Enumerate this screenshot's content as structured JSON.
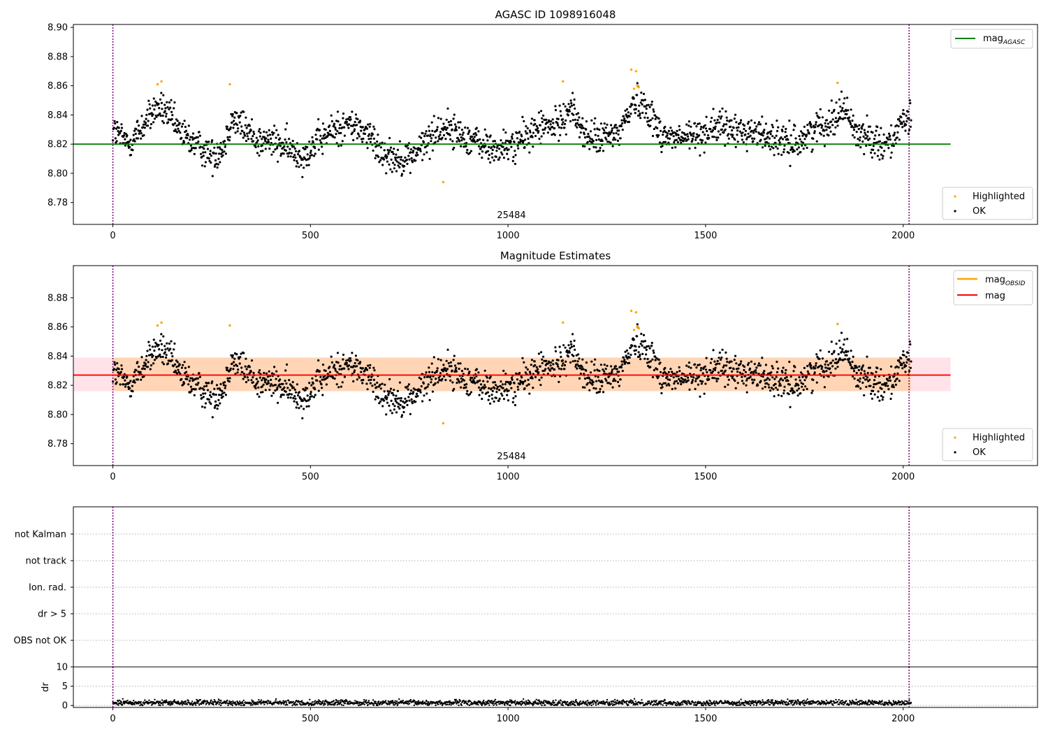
{
  "chart_data": [
    {
      "type": "scatter",
      "title": "AGASC ID 1098916048",
      "xlim": [
        -100,
        2340
      ],
      "ylim": [
        8.765,
        8.902
      ],
      "x_ticks": [
        0,
        500,
        1000,
        1500,
        2000
      ],
      "x_tick_labels": [
        "0",
        "500",
        "1000",
        "1500",
        "2000"
      ],
      "y_ticks": [
        8.78,
        8.8,
        8.82,
        8.84,
        8.86,
        8.88,
        8.9
      ],
      "y_tick_labels": [
        "8.78",
        "8.80",
        "8.82",
        "8.84",
        "8.86",
        "8.88",
        "8.90"
      ],
      "obsid_label": "25484",
      "obsid_label_x": 1000,
      "vlines": [
        0,
        2015
      ],
      "vline_color": "#800080",
      "hline": {
        "y": 8.82,
        "x_range": [
          -100,
          2120
        ],
        "color": "#008000"
      },
      "legend_upper": [
        {
          "label": "mag",
          "sub": "AGASC",
          "kind": "line",
          "color": "#008000"
        }
      ],
      "legend_lower": [
        {
          "label": "Highlighted",
          "kind": "marker",
          "color": "#ffa500"
        },
        {
          "label": "OK",
          "kind": "marker",
          "color": "#000000"
        }
      ],
      "series": [
        {
          "name": "Highlighted",
          "color": "#ffa500",
          "x": [
            113,
            123,
            296,
            836,
            1139,
            1312,
            1324,
            1319,
            1327,
            1331,
            1834
          ],
          "y": [
            8.861,
            8.863,
            8.861,
            8.794,
            8.863,
            8.871,
            8.87,
            8.858,
            8.86,
            8.859,
            8.862
          ]
        },
        {
          "name": "OK",
          "color": "#000000",
          "trend": {
            "x": [
              0,
              40,
              75,
              110,
              135,
              170,
              200,
              250,
              280,
              300,
              330,
              370,
              400,
              450,
              480,
              520,
              560,
              600,
              640,
              680,
              720,
              760,
              800,
              840,
              880,
              920,
              960,
              1000,
              1040,
              1080,
              1120,
              1160,
              1200,
              1240,
              1280,
              1320,
              1350,
              1390,
              1430,
              1480,
              1520,
              1560,
              1620,
              1660,
              1700,
              1740,
              1780,
              1820,
              1850,
              1880,
              1920,
              1960,
              1990,
              2020
            ],
            "y": [
              8.83,
              8.82,
              8.832,
              8.845,
              8.842,
              8.828,
              8.822,
              8.812,
              8.818,
              8.838,
              8.832,
              8.822,
              8.822,
              8.816,
              8.812,
              8.822,
              8.83,
              8.834,
              8.828,
              8.815,
              8.81,
              8.812,
              8.824,
              8.832,
              8.826,
              8.822,
              8.816,
              8.818,
              8.824,
              8.832,
              8.832,
              8.845,
              8.824,
              8.824,
              8.828,
              8.85,
              8.846,
              8.826,
              8.824,
              8.826,
              8.832,
              8.83,
              8.828,
              8.826,
              8.82,
              8.822,
              8.832,
              8.836,
              8.846,
              8.828,
              8.824,
              8.82,
              8.83,
              8.838
            ]
          },
          "spread": 0.0055,
          "count": 1850,
          "x_range": [
            0,
            2020
          ]
        }
      ]
    },
    {
      "type": "scatter",
      "title": "Magnitude Estimates",
      "xlim": [
        -100,
        2340
      ],
      "ylim": [
        8.765,
        8.902
      ],
      "x_ticks": [
        0,
        500,
        1000,
        1500,
        2000
      ],
      "x_tick_labels": [
        "0",
        "500",
        "1000",
        "1500",
        "2000"
      ],
      "y_ticks": [
        8.78,
        8.8,
        8.82,
        8.84,
        8.86,
        8.88
      ],
      "y_tick_labels": [
        "8.78",
        "8.80",
        "8.82",
        "8.84",
        "8.86",
        "8.88"
      ],
      "obsid_label": "25484",
      "obsid_label_x": 1000,
      "vlines": [
        0,
        2015
      ],
      "vline_color": "#800080",
      "hline": {
        "y": 8.827,
        "x_range": [
          -100,
          2120
        ],
        "color": "#ff0000"
      },
      "band": {
        "y_low": 8.816,
        "y_high": 8.839,
        "x_range": [
          -100,
          2120
        ],
        "color": "#ffc0cb",
        "inner_color": "#ffa500"
      },
      "legend_upper": [
        {
          "label": "mag",
          "sub": "OBSID",
          "kind": "line",
          "color": "#ffa500"
        },
        {
          "label": "mag",
          "sub": "",
          "kind": "line",
          "color": "#ff0000"
        }
      ],
      "legend_lower": [
        {
          "label": "Highlighted",
          "kind": "marker",
          "color": "#ffa500"
        },
        {
          "label": "OK",
          "kind": "marker",
          "color": "#000000"
        }
      ]
    },
    {
      "type": "scatter",
      "title": "",
      "xlim": [
        -100,
        2340
      ],
      "categories": [
        "OBS not OK",
        "dr > 5",
        "Ion. rad.",
        "not track",
        "not Kalman"
      ],
      "vlines": [
        0,
        2015
      ],
      "vline_color": "#800080"
    },
    {
      "type": "line",
      "title": "",
      "ylabel": "dr",
      "xlim": [
        -100,
        2340
      ],
      "ylim": [
        -0.5,
        10
      ],
      "x_ticks": [
        0,
        500,
        1000,
        1500,
        2000
      ],
      "x_tick_labels": [
        "0",
        "500",
        "1000",
        "1500",
        "2000"
      ],
      "y_ticks": [
        0,
        5,
        10
      ],
      "y_tick_labels": [
        "0",
        "5",
        "10"
      ],
      "vlines": [
        0,
        2015
      ],
      "vline_color": "#800080",
      "series": [
        {
          "name": "dr",
          "color": "#000000",
          "mean": 0.7,
          "spread": 0.35,
          "x_range": [
            0,
            2020
          ],
          "count": 1850
        }
      ]
    }
  ]
}
